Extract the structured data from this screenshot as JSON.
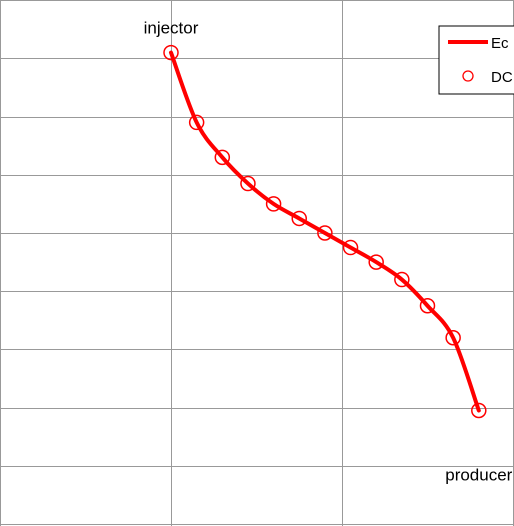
{
  "chart_data": {
    "type": "line",
    "title": "",
    "xlabel": "",
    "ylabel": "",
    "xlim": [
      0,
      3
    ],
    "ylim": [
      0,
      9
    ],
    "grid": true,
    "legend_placement": "top-right",
    "annotations": [
      {
        "text": "injector",
        "x": 1.0,
        "y": 8.1
      },
      {
        "text": "producer",
        "x": 2.8,
        "y": 1.35
      }
    ],
    "series": [
      {
        "name": "Ec",
        "kind": "line",
        "color": "#ff0000",
        "x": [
          1.0,
          1.15,
          1.3,
          1.45,
          1.6,
          1.75,
          1.9,
          2.05,
          2.2,
          2.35,
          2.5,
          2.65,
          2.8
        ],
        "y": [
          8.1,
          6.9,
          6.3,
          5.85,
          5.5,
          5.25,
          5.0,
          4.75,
          4.5,
          4.2,
          3.75,
          3.2,
          1.95
        ]
      },
      {
        "name": "DC",
        "kind": "markers",
        "color": "#ff0000",
        "x": [
          1.0,
          1.15,
          1.3,
          1.45,
          1.6,
          1.75,
          1.9,
          2.05,
          2.2,
          2.35,
          2.5,
          2.65,
          2.8
        ],
        "y": [
          8.1,
          6.9,
          6.3,
          5.85,
          5.5,
          5.25,
          5.0,
          4.75,
          4.5,
          4.2,
          3.75,
          3.2,
          1.95
        ]
      }
    ]
  }
}
